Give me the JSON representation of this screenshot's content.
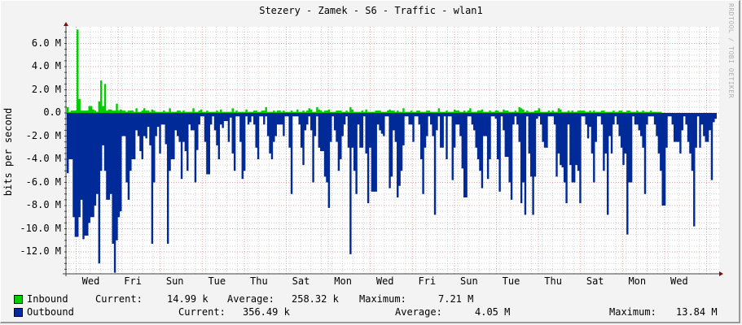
{
  "title": "Stezery - Zamek - S6 - Traffic - wlan1",
  "watermark": "RRDTOOL / TOBI OETIKER",
  "colors": {
    "inbound": "#00cc00",
    "outbound": "#002a97",
    "grid_major": "#e8a0a0",
    "grid_minor": "#d0d0d0",
    "axis": "#404040",
    "arrow": "#7f1010"
  },
  "chart_data": {
    "type": "area",
    "title": "Stezery - Zamek - S6 - Traffic - wlan1",
    "xlabel": "",
    "ylabel": "bits per second",
    "ylim": [
      -14000000,
      7200000
    ],
    "y_ticks": [
      "6.0 M",
      "4.0 M",
      "2.0 M",
      "0.0",
      "-2.0 M",
      "-4.0 M",
      "-6.0 M",
      "-8.0 M",
      "-10.0 M",
      "-12.0 M"
    ],
    "x_ticks": [
      "Wed",
      "Fri",
      "Sun",
      "Tue",
      "Thu",
      "Sat",
      "Mon",
      "Wed",
      "Fri",
      "Sun",
      "Tue",
      "Thu",
      "Sat",
      "Mon",
      "Wed"
    ],
    "grid": true,
    "legend_position": "bottom",
    "series": [
      {
        "name": "Inbound",
        "color": "#00cc00",
        "values_M": [
          0.5,
          0.1,
          0.2,
          0.2,
          0.2,
          7.2,
          1.2,
          0.2,
          0.2,
          0.2,
          0.2,
          0.6,
          0.6,
          0.3,
          0.2,
          0.1,
          1.0,
          2.8,
          0.6,
          2.5,
          0.2,
          0.3,
          0.3,
          0.2,
          0.2,
          0.8,
          0.2,
          0.3,
          0.2,
          0.2,
          0.1,
          0.2,
          0.2,
          0.2,
          0.1,
          0.4,
          0.1,
          0.1,
          0.2,
          0.4,
          0.2,
          0.2,
          0.1,
          0.3,
          0.2,
          0.1,
          0.1,
          0.1,
          0.1,
          0.2,
          0.1,
          0.1,
          0.4,
          0.1,
          0.1,
          0.1,
          0.2,
          0.2,
          0.1,
          0.2,
          0.1,
          0.1,
          0.1,
          0.1,
          0.4,
          0.1,
          0.1,
          0.2,
          0.3,
          0.1,
          0.1,
          0.2,
          0.1,
          0.1,
          0.1,
          0.1,
          0.2,
          0.1,
          0.3,
          0.1,
          0.1,
          0.1,
          0.1,
          0.1,
          0.4,
          0.1,
          0.2,
          0.1,
          0.1,
          0.1,
          0.1,
          0.3,
          0.1,
          0.1,
          0.1,
          0.2,
          0.2,
          0.1,
          0.1,
          0.2,
          0.2,
          0.5,
          0.1,
          0.1,
          0.1,
          0.2,
          0.1,
          0.2,
          0.2,
          0.1,
          0.2,
          0.1,
          0.1,
          0.1,
          0.2,
          0.1,
          0.1,
          0.3,
          0.1,
          0.1,
          0.2,
          0.1,
          0.2,
          0.4,
          0.3,
          0.1,
          0.1,
          0.5,
          0.3,
          0.2,
          0.1,
          0.2,
          0.2,
          0.3,
          0.1,
          0.1,
          0.1,
          0.2,
          0.2,
          0.2,
          0.1,
          0.1,
          0.2,
          0.1,
          0.5,
          0.3,
          0.1,
          0.1,
          0.1,
          0.1,
          0.2,
          0.1,
          0.3,
          0.1,
          0.1,
          0.1,
          0.1,
          0.2,
          0.2,
          0.2,
          0.1,
          0.1,
          0.1,
          0.2,
          0.3,
          0.2,
          0.2,
          0.1,
          0.2,
          0.1,
          0.1,
          0.4,
          0.1,
          0.1,
          0.1,
          0.2,
          0.1,
          0.1,
          0.2,
          0.2,
          0.1,
          0.1,
          0.1,
          0.2,
          0.2,
          0.1,
          0.1,
          0.1,
          0.1,
          0.4,
          0.1,
          0.1,
          0.1,
          0.2,
          0.1,
          0.1,
          0.1,
          0.3,
          0.2,
          0.2,
          0.1,
          0.1,
          0.2,
          0.1,
          0.2,
          0.4,
          0.1,
          0.1,
          0.1,
          0.2,
          0.2,
          0.3,
          0.1,
          0.1,
          0.1,
          0.2,
          0.1,
          0.1,
          0.2,
          0.2,
          0.1,
          0.1,
          0.3,
          0.2,
          0.2,
          0.1,
          0.1,
          0.1,
          0.2,
          0.1,
          0.5,
          0.4,
          0.3,
          0.1,
          0.2,
          0.1,
          0.1,
          0.1,
          0.2,
          0.2,
          0.4,
          0.1,
          0.1,
          0.1,
          0.1,
          0.2,
          0.1,
          0.2,
          0.1,
          0.1,
          0.4,
          0.3,
          0.1,
          0.1,
          0.1,
          0.2,
          0.1,
          0.2,
          0.1,
          0.1,
          0.2,
          0.2,
          0.2,
          0.2,
          0.1,
          0.1,
          0.2,
          0.1,
          0.2,
          0.1,
          0.1,
          0.1,
          0.2,
          0.2,
          0.1,
          0.1,
          0.1,
          0.1,
          0.2,
          0.1,
          0.1,
          0.2,
          0.2,
          0.1,
          0.1,
          0.2,
          0.2,
          0.1,
          0.1,
          0.1,
          0.2,
          0.1,
          0.1,
          0.2,
          0.1,
          0.1,
          0.1,
          0.2,
          0.1,
          0.1,
          0.1,
          0.1,
          0.1
        ],
        "legend": {
          "label": "Inbound",
          "current_label": "Current:",
          "current": "14.99 k",
          "average_label": "Average:",
          "average": "258.32 k",
          "maximum_label": "Maximum:",
          "maximum": "7.21 M"
        }
      },
      {
        "name": "Outbound",
        "color": "#002a97",
        "values_M": [
          5.2,
          4.0,
          4.0,
          9.0,
          10.7,
          10.7,
          9.0,
          7.5,
          10.9,
          10.6,
          10.6,
          9.5,
          9.0,
          9.0,
          8.0,
          7.0,
          13.0,
          5.0,
          2.8,
          5.0,
          7.5,
          7.5,
          7.0,
          11.3,
          13.8,
          11.0,
          9.0,
          8.5,
          2.0,
          2.0,
          6.0,
          7.5,
          5.0,
          4.0,
          4.0,
          1.5,
          2.0,
          3.3,
          4.0,
          2.0,
          2.2,
          1.2,
          2.8,
          11.3,
          6.0,
          2.0,
          1.2,
          3.5,
          1.0,
          1.0,
          2.7,
          11.3,
          5.0,
          4.0,
          4.0,
          1.5,
          2.0,
          2.5,
          5.7,
          2.5,
          3.3,
          5.0,
          1.0,
          1.5,
          1.5,
          6.0,
          3.2,
          1.0,
          0.3,
          0.3,
          2.5,
          5.3,
          5.3,
          1.0,
          0.3,
          1.5,
          2.8,
          4.0,
          1.0,
          1.3,
          0.7,
          0.7,
          2.5,
          0.4,
          3.5,
          5.0,
          0.3,
          0.3,
          2.5,
          5.7,
          5.0,
          0.3,
          1.0,
          0.8,
          0.3,
          1.0,
          3.0,
          4.0,
          0.3,
          0.3,
          1.0,
          0.3,
          2.0,
          3.5,
          4.0,
          2.5,
          2.0,
          1.0,
          1.0,
          1.0,
          2.0,
          0.3,
          0.3,
          3.0,
          7.0,
          0.3,
          0.3,
          0.3,
          1.0,
          3.0,
          4.5,
          1.5,
          1.0,
          0.3,
          1.5,
          6.0,
          2.0,
          0.3,
          3.0,
          3.3,
          3.3,
          5.5,
          6.0,
          8.2,
          2.5,
          0.3,
          1.5,
          2.5,
          5.0,
          4.0,
          2.0,
          1.0,
          0.3,
          3.0,
          12.2,
          3.0,
          5.0,
          7.0,
          1.0,
          3.0,
          3.0,
          0.3,
          3.5,
          7.8,
          3.0,
          6.8,
          6.8,
          6.8,
          1.0,
          1.5,
          1.8,
          2.0,
          0.3,
          0.3,
          6.5,
          5.5,
          1.5,
          2.5,
          7.3,
          6.3,
          5.0,
          2.8,
          0.3,
          0.3,
          1.0,
          1.0,
          2.5,
          0.3,
          0.3,
          1.0,
          4.0,
          7.0,
          3.0,
          2.0,
          0.3,
          1.0,
          2.0,
          8.8,
          1.5,
          0.3,
          3.0,
          3.0,
          0.3,
          4.0,
          0.3,
          0.3,
          5.8,
          3.0,
          1.0,
          1.0,
          2.0,
          4.8,
          7.3,
          7.3,
          0.3,
          0.3,
          1.0,
          1.5,
          3.0,
          4.0,
          5.0,
          6.5,
          2.0,
          2.0,
          5.7,
          4.0,
          0.3,
          0.3,
          0.5,
          4.0,
          6.8,
          0.3,
          1.5,
          3.8,
          3.8,
          6.0,
          7.5,
          1.0,
          0.3,
          1.0,
          2.5,
          7.8,
          6.0,
          8.8,
          0.3,
          3.5,
          5.5,
          8.8,
          5.5,
          0.5,
          0.3,
          1.0,
          2.5,
          3.0,
          3.0,
          0.3,
          0.3,
          0.3,
          1.0,
          5.5,
          3.5,
          4.5,
          4.7,
          6.0,
          7.8,
          1.0,
          4.5,
          6.0,
          6.0,
          4.5,
          5.0,
          7.8,
          0.3,
          0.3,
          1.0,
          2.2,
          1.2,
          3.5,
          6.0,
          2.5,
          0.3,
          0.3,
          1.0,
          5.0,
          3.5,
          8.8,
          2.0,
          3.5,
          1.0,
          0.3,
          1.0,
          2.0,
          3.0,
          4.5,
          3.5,
          10.5,
          6.0,
          6.0,
          0.3,
          1.0,
          1.0,
          1.5,
          2.0,
          3.0,
          7.0,
          1.0,
          0.3,
          0.3,
          0.3,
          1.0,
          2.0,
          3.5,
          5.0,
          8.0,
          8.0,
          3.0,
          0.3,
          0.3,
          1.0,
          2.5,
          2.5,
          2.5,
          3.5,
          1.5,
          0.3,
          1.0,
          2.5,
          3.5,
          5.0,
          9.8,
          3.0,
          0.3,
          3.0,
          1.0,
          2.0,
          2.5,
          2.5,
          1.5,
          5.8,
          0.8,
          0.5
        ],
        "legend": {
          "label": "Outbound",
          "current_label": "Current:",
          "current": "356.49 k",
          "average_label": "Average:",
          "average": "4.05 M",
          "maximum_label": "Maximum:",
          "maximum": "13.84 M"
        }
      }
    ]
  }
}
